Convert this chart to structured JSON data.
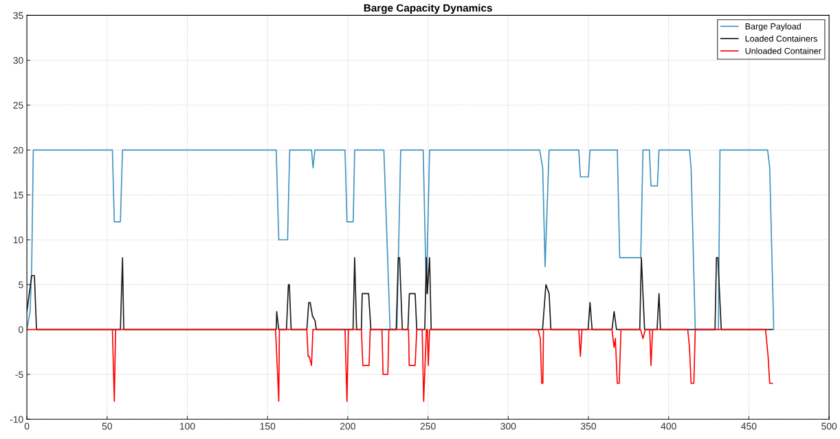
{
  "chart_data": {
    "type": "line",
    "title": "Barge Capacity Dynamics",
    "series": [
      {
        "name": "Barge Payload",
        "color": "#3f94c0",
        "x": [
          0,
          2,
          3,
          4,
          53.3,
          54.5,
          58.3,
          59.6,
          155.4,
          157,
          162.5,
          163.8,
          177.4,
          178.4,
          179.5,
          198.3,
          199.5,
          203.4,
          204.3,
          222.5,
          226.4,
          230.6,
          233,
          247,
          249,
          251,
          319.6,
          321.5,
          323,
          325.5,
          344,
          345,
          350,
          351,
          368,
          369.5,
          382.6,
          384,
          388,
          389,
          393,
          394,
          413,
          414,
          416.6,
          431,
          432,
          461.7,
          463,
          465.5
        ],
        "values": [
          0,
          2,
          7,
          20,
          20,
          12,
          12,
          20,
          20,
          10,
          10,
          20,
          20,
          18,
          20,
          20,
          12,
          12,
          20,
          20,
          0,
          0,
          20,
          20,
          4,
          20,
          20,
          18,
          7,
          20,
          20,
          17,
          17,
          20,
          20,
          8,
          8,
          20,
          20,
          16,
          16,
          20,
          20,
          18,
          0,
          0,
          20,
          20,
          18,
          0
        ]
      },
      {
        "name": "Loaded Containers",
        "color": "#1a1a1a",
        "x": [
          0,
          3,
          4.7,
          6,
          58.3,
          59.6,
          60.4,
          155.4,
          155.7,
          157,
          161.8,
          163,
          163.6,
          164.7,
          174.5,
          175.7,
          176.6,
          178,
          179.6,
          180.4,
          203.3,
          204.3,
          205.5,
          208.5,
          209,
          213,
          214.4,
          230.2,
          231.5,
          232.3,
          234,
          237.5,
          238.4,
          242,
          243,
          248,
          249,
          249.6,
          251,
          252,
          321.4,
          323.5,
          324.5,
          325.5,
          326.6,
          349.8,
          351,
          352.3,
          364.7,
          366,
          367.5,
          382,
          383,
          385,
          392.8,
          394,
          394.9,
          428.9,
          429.8,
          430.7,
          432.8,
          464.7
        ],
        "values": [
          2,
          6,
          6,
          0,
          0,
          8,
          0,
          0,
          2,
          0,
          0,
          5,
          5,
          0,
          0,
          3,
          3,
          1.5,
          1,
          0,
          0,
          8,
          0,
          0,
          4,
          4,
          0,
          0,
          8,
          8,
          0,
          0,
          4,
          4,
          0,
          0,
          8,
          4,
          8,
          0,
          0,
          5,
          4.5,
          4,
          0,
          0,
          3,
          0,
          0,
          2,
          0,
          0,
          8,
          0,
          0,
          4,
          0,
          0,
          8,
          8,
          0,
          0
        ]
      },
      {
        "name": "Unloaded Container",
        "color": "#ff0000",
        "x": [
          0,
          53.3,
          54.5,
          55.3,
          155,
          157,
          157.4,
          174.5,
          175.3,
          176,
          177.4,
          178.3,
          198.3,
          199.5,
          200.4,
          208.5,
          209.4,
          213.3,
          214,
          221.3,
          222,
          225,
          225.6,
          237.9,
          238.3,
          242,
          243,
          246.4,
          247.3,
          249,
          249.6,
          250.2,
          251,
          318.7,
          320,
          320.9,
          321.6,
          322,
          344,
          345,
          346,
          364.7,
          366,
          366.8,
          368,
          369.2,
          370.3,
          382.5,
          384,
          385.5,
          388.2,
          389,
          390,
          411.9,
          413,
          414,
          415.7,
          416.6,
          460.4,
          462,
          463,
          464.7
        ],
        "values": [
          0,
          0,
          -8,
          0,
          0,
          -8,
          0,
          0,
          -3,
          -3,
          -4,
          0,
          0,
          -8,
          0,
          0,
          -4,
          -4,
          0,
          0,
          -5,
          -5,
          0,
          0,
          -4,
          -4,
          0,
          0,
          -8,
          0,
          0,
          -4,
          0,
          0,
          -1,
          -6,
          -6,
          0,
          0,
          -3,
          0,
          0,
          -2,
          -1,
          -6,
          -6,
          0,
          0,
          -1,
          0,
          0,
          -4,
          0,
          0,
          -2,
          -6,
          -6,
          0,
          0,
          -3,
          -6,
          -6
        ]
      }
    ],
    "xlim": [
      0,
      500
    ],
    "xticks": [
      0,
      50,
      100,
      150,
      200,
      250,
      300,
      350,
      400,
      450,
      500
    ],
    "ylim": [
      -10,
      35
    ],
    "yticks": [
      -10,
      -5,
      0,
      5,
      10,
      15,
      20,
      25,
      30,
      35
    ],
    "grid": true,
    "legend": "top right",
    "marker": "none",
    "line_style": "solid"
  }
}
